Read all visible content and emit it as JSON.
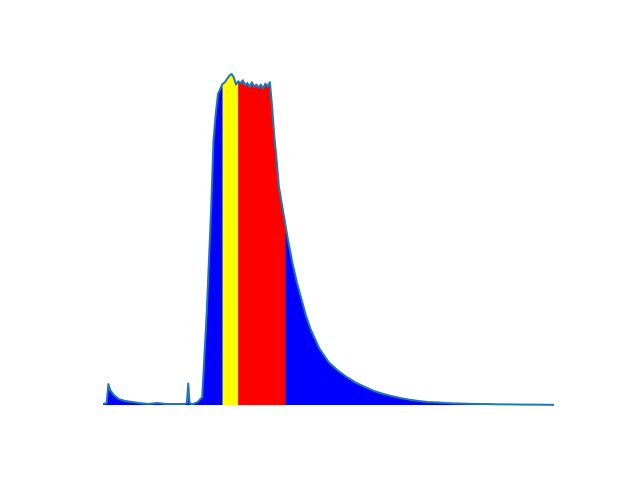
{
  "chart_data": {
    "type": "area",
    "title": "",
    "xlabel": "",
    "ylabel": "",
    "axes_visible": false,
    "grid": false,
    "legend": "none",
    "xlim": [
      0,
      100
    ],
    "ylim": [
      0,
      100
    ],
    "colors": {
      "line": "#1f77b4",
      "fill_base": "#0000ff",
      "band_yellow": "#ffff00",
      "band_red": "#ff0000"
    },
    "series": [
      {
        "x": [
          0,
          0.8,
          1.2,
          1.6,
          2.4,
          3.5,
          5,
          6.5,
          8,
          10,
          12,
          14,
          16,
          17,
          18,
          18.6,
          18.9,
          19.2,
          19.6,
          20,
          21,
          22,
          23,
          24,
          24.5,
          25,
          25.5,
          26,
          26.5,
          27,
          27.5,
          28,
          28.5,
          29,
          29.5,
          30,
          30.5,
          31,
          31.5,
          32,
          32.5,
          33,
          33.5,
          34,
          34.5,
          35,
          35.5,
          36,
          36.5,
          37,
          37.5,
          38,
          38.5,
          39,
          40,
          41,
          42,
          43,
          44,
          45,
          46,
          47,
          48,
          50,
          52,
          54,
          56,
          58,
          60,
          62,
          64,
          66,
          68,
          70,
          72,
          74,
          76,
          78,
          80,
          82,
          84,
          86,
          88,
          90,
          92,
          94,
          96,
          98,
          100
        ],
        "y": [
          0.3,
          0.6,
          6.3,
          4.5,
          3,
          1.8,
          1.2,
          0.9,
          0.6,
          0.3,
          0.6,
          0.3,
          0.3,
          0.3,
          0.3,
          0.6,
          6.5,
          0.6,
          0.3,
          0.3,
          0.9,
          2.4,
          28,
          60,
          80,
          88,
          94,
          95.5,
          97,
          97.5,
          98.5,
          99.5,
          100,
          99,
          96.8,
          97.8,
          97.2,
          98.1,
          96.6,
          97.3,
          96.1,
          97.5,
          96.2,
          96.8,
          95.9,
          96.8,
          95.6,
          97.1,
          96.3,
          97.5,
          90,
          81,
          74,
          66,
          58,
          50,
          43,
          37,
          32,
          27,
          23,
          20,
          17,
          13,
          10.5,
          8.5,
          6.8,
          5.5,
          4.3,
          3.4,
          2.7,
          2.1,
          1.6,
          1.2,
          0.9,
          0.8,
          0.6,
          0.5,
          0.4,
          0.35,
          0.3,
          0.25,
          0.2,
          0.18,
          0.15,
          0.12,
          0.1,
          0.08,
          0.05
        ]
      }
    ],
    "bands": [
      {
        "name": "",
        "x_range": [
          26.5,
          30
        ],
        "color": "#ffff00"
      },
      {
        "name": "",
        "x_range": [
          30,
          40.5
        ],
        "color": "#ff0000"
      }
    ]
  }
}
